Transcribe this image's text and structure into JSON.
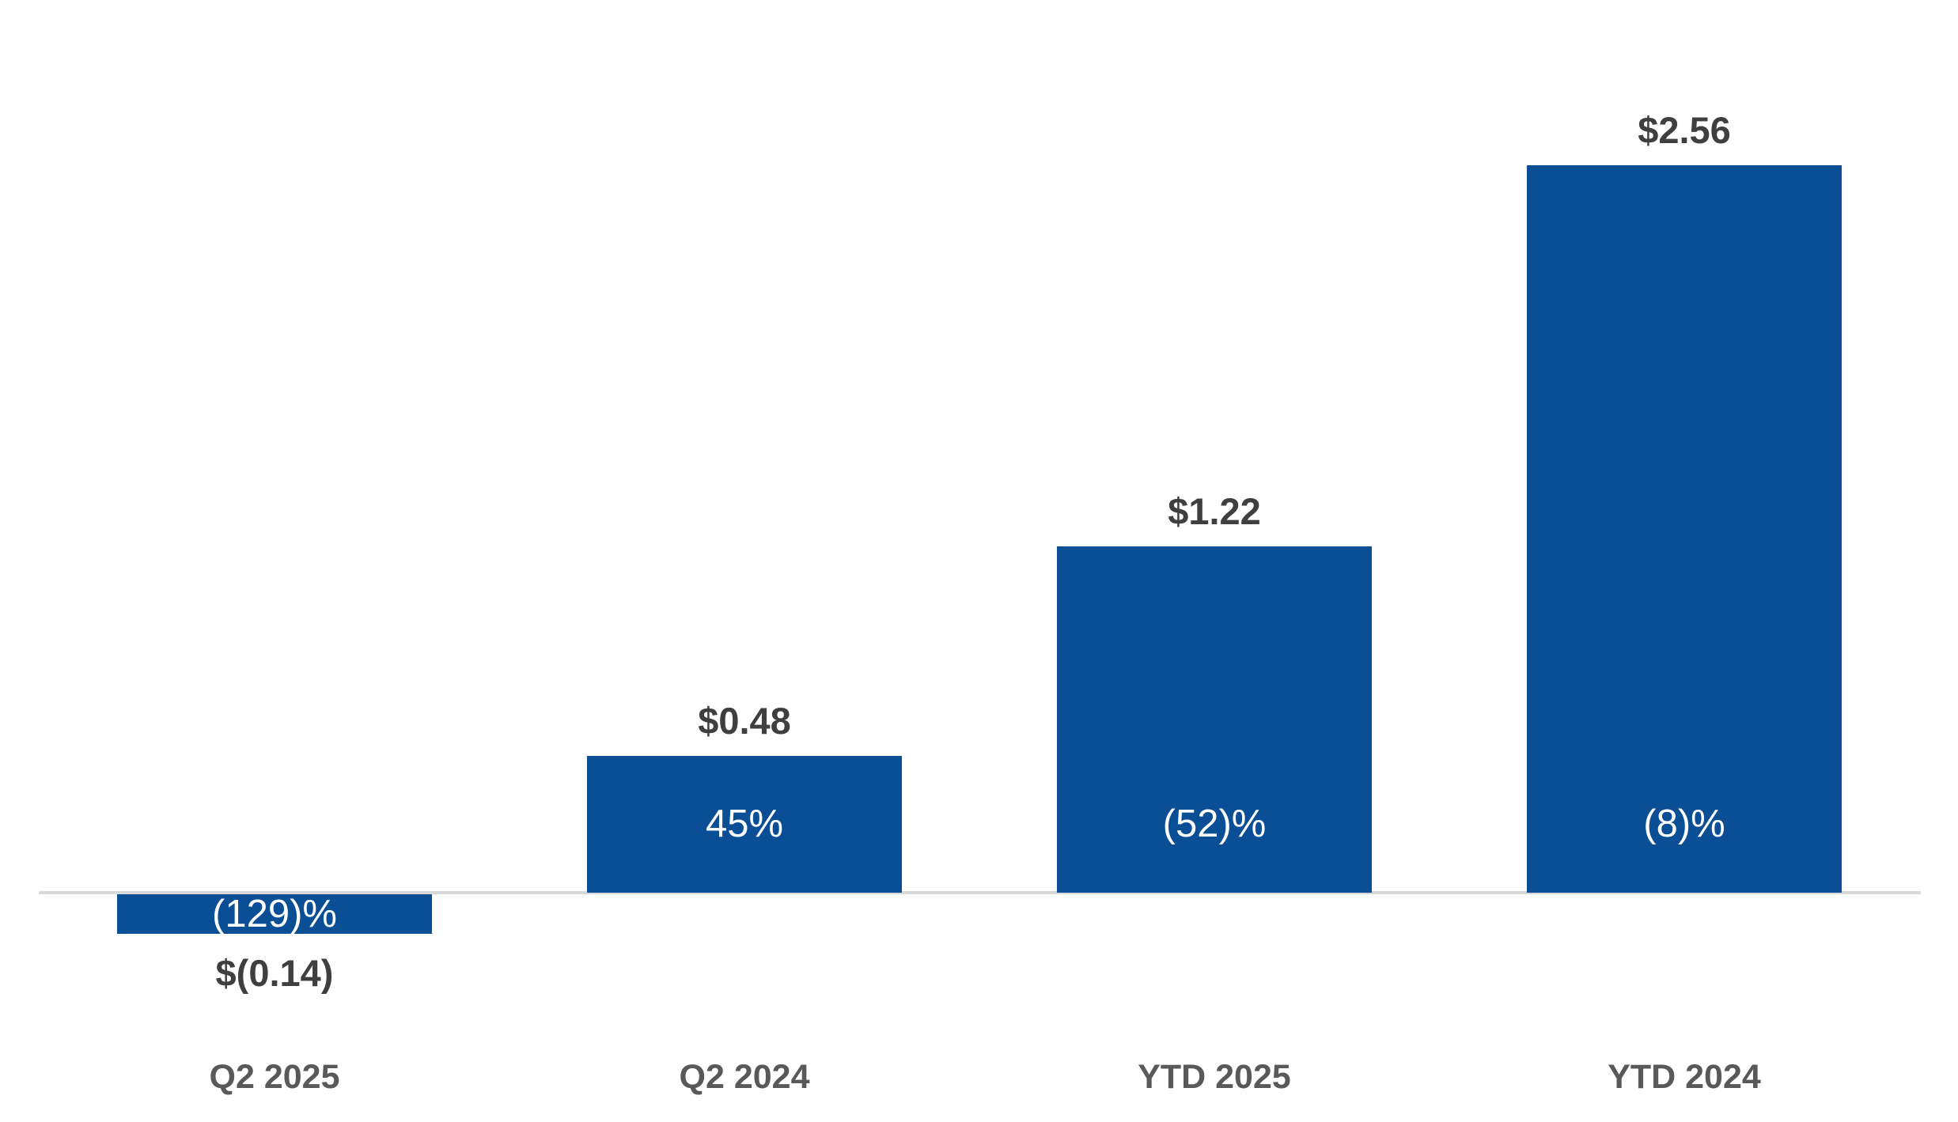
{
  "chart_data": {
    "type": "bar",
    "title": "",
    "xlabel": "",
    "ylabel": "",
    "categories": [
      "Q2 2025",
      "Q2 2024",
      "YTD 2025",
      "YTD 2024"
    ],
    "values": [
      -0.14,
      0.48,
      1.22,
      2.56
    ],
    "bars": [
      {
        "category": "Q2 2025",
        "value": -0.14,
        "value_label": "$(0.14)",
        "pct_label": "(129)%"
      },
      {
        "category": "Q2 2024",
        "value": 0.48,
        "value_label": "$0.48",
        "pct_label": "45%"
      },
      {
        "category": "YTD 2025",
        "value": 1.22,
        "value_label": "$1.22",
        "pct_label": "(52)%"
      },
      {
        "category": "YTD 2024",
        "value": 2.56,
        "value_label": "$2.56",
        "pct_label": "(8)%"
      }
    ],
    "ylim": [
      -0.2,
      2.8
    ],
    "gridlines": false,
    "legend_position": "none",
    "bar_color": "#0A4E96",
    "pct_label_color": "#FFFFFF",
    "value_label_color": "#3F3F3F",
    "category_label_color": "#595959",
    "axis_line_color": "#D9D9D9",
    "background_color": "#FFFFFF"
  }
}
